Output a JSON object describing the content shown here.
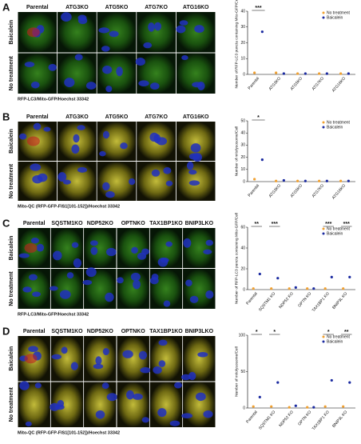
{
  "panels": [
    {
      "label": "A",
      "columns": [
        "Parental",
        "ATG3KO",
        "ATG5KO",
        "ATG7KO",
        "ATG16KO"
      ],
      "rows": [
        "Baicalein",
        "No treatment"
      ],
      "caption": "RFP-LC3/Mito-GFP/Hoechst 33342"
    },
    {
      "label": "B",
      "columns": [
        "Parental",
        "ATG3KO",
        "ATG5KO",
        "ATG7KO",
        "ATG16KO"
      ],
      "rows": [
        "Baicalein",
        "No treatment"
      ],
      "caption": "Mito-QC (RFP-GFP-FIS1[101-152])/Hoechst 33342"
    },
    {
      "label": "C",
      "columns": [
        "Parental",
        "SQSTM1KO",
        "NDP52KO",
        "OPTNKO",
        "TAX1BP1KO",
        "BNIP3LKO"
      ],
      "rows": [
        "Baicalein",
        "No treatment"
      ],
      "caption": "RFP-LC3/Mito-GFP/Hoechst 33342"
    },
    {
      "label": "D",
      "columns": [
        "Parental",
        "SQSTM1KO",
        "NDP52KO",
        "OPTNKO",
        "TAX1BP1KO",
        "BNIP3LKO"
      ],
      "rows": [
        "Baicalein",
        "No treatment"
      ],
      "caption": "Mito-QC (RFP-GFP-FIS1[101-152])/Hoechst 33342"
    }
  ],
  "chart_data": [
    {
      "type": "scatter",
      "ylabel": "Number of RFP-LC3 puncta containing Mito-GFP/Cell",
      "categories": [
        "Parental",
        "ATG3KO",
        "ATG5KO",
        "ATG7KO",
        "ATG16KO"
      ],
      "ylim": [
        0,
        40
      ],
      "yticks": [
        0,
        10,
        20,
        30,
        40
      ],
      "annotations": [
        "***",
        null,
        null,
        null,
        null
      ],
      "series": [
        {
          "name": "No treatment",
          "color": "#f0a030",
          "values": [
            1,
            1,
            0.5,
            0.5,
            0.5
          ]
        },
        {
          "name": "Baicalein",
          "color": "#1a2aa0",
          "values": [
            27,
            0.5,
            0.5,
            0.5,
            0.5
          ]
        }
      ]
    },
    {
      "type": "scatter",
      "ylabel": "Number of mitolysosome/Cell",
      "categories": [
        "Parental",
        "ATG3KO",
        "ATG5KO",
        "ATG7KO",
        "ATG16KO"
      ],
      "ylim": [
        0,
        50
      ],
      "yticks": [
        0,
        10,
        20,
        30,
        40,
        50
      ],
      "annotations": [
        "*",
        null,
        null,
        null,
        null
      ],
      "series": [
        {
          "name": "No treatment",
          "color": "#f0a030",
          "values": [
            2,
            0.5,
            0.5,
            0.5,
            0.5
          ]
        },
        {
          "name": "Baicalein",
          "color": "#1a2aa0",
          "values": [
            18,
            1,
            0.5,
            0.5,
            0.5
          ]
        }
      ]
    },
    {
      "type": "scatter",
      "ylabel": "Number of RFP-LC3 puncta containing Mito-GFP/Cell",
      "categories": [
        "Parental",
        "SQSTM1 KO",
        "NDP52 KO",
        "OPTN KO",
        "TAX1BP1 KO",
        "BNIP3L KO"
      ],
      "ylim": [
        0,
        60
      ],
      "yticks": [
        0,
        20,
        40,
        60
      ],
      "annotations": [
        "**",
        "***",
        null,
        null,
        "***",
        "***"
      ],
      "series": [
        {
          "name": "No treatment",
          "color": "#f0a030",
          "values": [
            1,
            1,
            1,
            1,
            1,
            1
          ]
        },
        {
          "name": "Baicalein",
          "color": "#1a2aa0",
          "values": [
            15,
            11,
            2,
            1,
            12,
            12
          ]
        }
      ]
    },
    {
      "type": "scatter",
      "ylabel": "Number of mitolysosome/Cell",
      "categories": [
        "Parental",
        "SQSTM1 KO",
        "NDP52 KO",
        "OPTN KO",
        "TAX1BP1 KO",
        "BNIP3L KO"
      ],
      "ylim": [
        0,
        100
      ],
      "yticks": [
        0,
        50,
        100
      ],
      "annotations": [
        "*",
        "*",
        null,
        null,
        "*",
        "**"
      ],
      "series": [
        {
          "name": "No treatment",
          "color": "#f0a030",
          "values": [
            2,
            2,
            1,
            1,
            2,
            2
          ]
        },
        {
          "name": "Baicalein",
          "color": "#1a2aa0",
          "values": [
            15,
            35,
            3,
            1,
            38,
            35
          ]
        }
      ]
    }
  ]
}
